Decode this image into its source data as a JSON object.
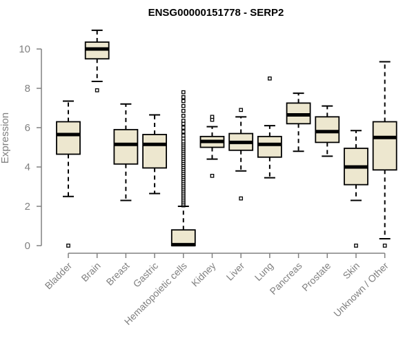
{
  "chart_data": {
    "type": "boxplot",
    "title": "ENSG00000151778 - SERP2",
    "xlabel": "",
    "ylabel": "Expression",
    "ylim": [
      0,
      11
    ],
    "yticks": [
      0,
      2,
      4,
      6,
      8,
      10
    ],
    "categories": [
      "Bladder",
      "Brain",
      "Breast",
      "Gastric",
      "Hematopoietic cells",
      "Kidney",
      "Liver",
      "Lung",
      "Pancreas",
      "Prostate",
      "Skin",
      "Unknown / Other"
    ],
    "boxes": [
      {
        "q1": 4.65,
        "median": 5.65,
        "q3": 6.3,
        "whisker_low": 2.5,
        "whisker_high": 7.35,
        "outliers": [
          0.0
        ]
      },
      {
        "q1": 9.5,
        "median": 10.0,
        "q3": 10.35,
        "whisker_low": 8.35,
        "whisker_high": 10.95,
        "outliers": [
          7.9
        ]
      },
      {
        "q1": 4.15,
        "median": 5.15,
        "q3": 5.9,
        "whisker_low": 2.3,
        "whisker_high": 7.2,
        "outliers": []
      },
      {
        "q1": 3.95,
        "median": 5.15,
        "q3": 5.65,
        "whisker_low": 2.65,
        "whisker_high": 6.65,
        "outliers": []
      },
      {
        "q1": 0.0,
        "median": 0.05,
        "q3": 0.8,
        "whisker_low": 0.0,
        "whisker_high": 2.0,
        "outliers": [
          2.05,
          2.1,
          2.2,
          2.3,
          2.4,
          2.5,
          2.6,
          2.7,
          2.8,
          2.9,
          3.0,
          3.1,
          3.2,
          3.3,
          3.4,
          3.5,
          3.6,
          3.7,
          3.8,
          3.9,
          4.0,
          4.1,
          4.2,
          4.3,
          4.4,
          4.5,
          4.6,
          4.7,
          4.8,
          4.9,
          5.0,
          5.1,
          5.2,
          5.3,
          5.45,
          5.6,
          5.8,
          6.0,
          6.2,
          6.35,
          6.6,
          6.85,
          7.1,
          7.35,
          7.55,
          7.8
        ]
      },
      {
        "q1": 5.0,
        "median": 5.3,
        "q3": 5.55,
        "whisker_low": 4.4,
        "whisker_high": 6.05,
        "outliers": [
          3.55,
          6.4,
          6.55
        ]
      },
      {
        "q1": 4.85,
        "median": 5.25,
        "q3": 5.7,
        "whisker_low": 3.8,
        "whisker_high": 6.55,
        "outliers": [
          2.4,
          6.9
        ]
      },
      {
        "q1": 4.5,
        "median": 5.15,
        "q3": 5.55,
        "whisker_low": 3.45,
        "whisker_high": 6.1,
        "outliers": [
          8.5
        ]
      },
      {
        "q1": 6.2,
        "median": 6.65,
        "q3": 7.25,
        "whisker_low": 4.8,
        "whisker_high": 7.75,
        "outliers": []
      },
      {
        "q1": 5.25,
        "median": 5.8,
        "q3": 6.55,
        "whisker_low": 4.55,
        "whisker_high": 7.1,
        "outliers": []
      },
      {
        "q1": 3.1,
        "median": 4.0,
        "q3": 4.95,
        "whisker_low": 2.3,
        "whisker_high": 5.85,
        "outliers": [
          0.0
        ]
      },
      {
        "q1": 3.85,
        "median": 5.5,
        "q3": 6.3,
        "whisker_low": 0.35,
        "whisker_high": 9.35,
        "outliers": [
          0.0
        ]
      }
    ]
  }
}
